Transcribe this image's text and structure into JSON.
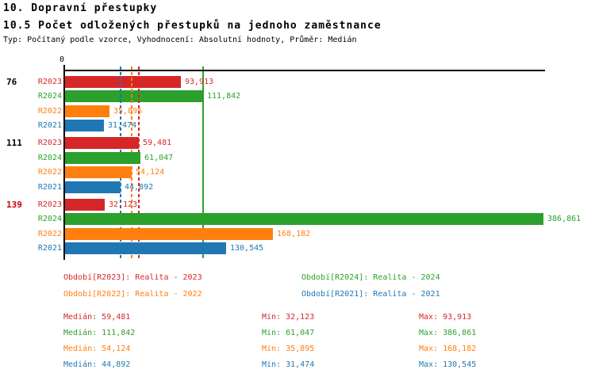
{
  "header": {
    "title": "10. Dopravní přestupky",
    "subtitle": "10.5 Počet odložených přestupků na jednoho zaměstnance",
    "meta": "Typ: Počítaný podle vzorce, Vyhodnocení: Absolutní hodnoty, Průměr: Medián"
  },
  "axis": {
    "zero_label": "0"
  },
  "chart_data": {
    "type": "bar",
    "orientation": "horizontal",
    "xlim": [
      0,
      386861
    ],
    "grid": false,
    "legend_position": "bottom",
    "series": [
      {
        "id": "R2023",
        "label": "R2023",
        "color": "#d62728",
        "legend": "Období[R2023]: Realita - 2023",
        "median": 59481,
        "min": 32123,
        "max": 93913,
        "median_line_style": "dashed"
      },
      {
        "id": "R2024",
        "label": "R2024",
        "color": "#2ca02c",
        "legend": "Období[R2024]: Realita - 2024",
        "median": 111842,
        "min": 61047,
        "max": 386861,
        "median_line_style": "solid"
      },
      {
        "id": "R2022",
        "label": "R2022",
        "color": "#ff7f0e",
        "legend": "Období[R2022]: Realita - 2022",
        "median": 54124,
        "min": 35895,
        "max": 168182,
        "median_line_style": "dashed"
      },
      {
        "id": "R2021",
        "label": "R2021",
        "color": "#1f77b4",
        "legend": "Období[R2021]: Realita - 2021",
        "median": 44892,
        "min": 31474,
        "max": 130545,
        "median_line_style": "dashed"
      }
    ],
    "groups": [
      {
        "label": "76",
        "label_color": "#000000",
        "bars": [
          {
            "series": "R2023",
            "value": 93913,
            "value_text": "93,913"
          },
          {
            "series": "R2024",
            "value": 111842,
            "value_text": "111,842"
          },
          {
            "series": "R2022",
            "value": 35895,
            "value_text": "35,895"
          },
          {
            "series": "R2021",
            "value": 31474,
            "value_text": "31,474"
          }
        ]
      },
      {
        "label": "111",
        "label_color": "#000000",
        "bars": [
          {
            "series": "R2023",
            "value": 59481,
            "value_text": "59,481"
          },
          {
            "series": "R2024",
            "value": 61047,
            "value_text": "61,047"
          },
          {
            "series": "R2022",
            "value": 54124,
            "value_text": "54,124"
          },
          {
            "series": "R2021",
            "value": 44892,
            "value_text": "44,892"
          }
        ]
      },
      {
        "label": "139",
        "label_color": "#cc0000",
        "bars": [
          {
            "series": "R2023",
            "value": 32123,
            "value_text": "32,123"
          },
          {
            "series": "R2024",
            "value": 386861,
            "value_text": "386,861"
          },
          {
            "series": "R2022",
            "value": 168182,
            "value_text": "168,182"
          },
          {
            "series": "R2021",
            "value": 130545,
            "value_text": "130,545"
          }
        ]
      }
    ],
    "legend_rows": [
      [
        "R2023",
        "R2024"
      ],
      [
        "R2022",
        "R2021"
      ]
    ],
    "stats": {
      "order": [
        "R2023",
        "R2024",
        "R2022",
        "R2021"
      ],
      "labels": {
        "median": "Medián:",
        "min": "Min:",
        "max": "Max:"
      },
      "rows": [
        {
          "series": "R2023",
          "median_text": "59,481",
          "min_text": "32,123",
          "max_text": "93,913"
        },
        {
          "series": "R2024",
          "median_text": "111,842",
          "min_text": "61,047",
          "max_text": "386,861"
        },
        {
          "series": "R2022",
          "median_text": "54,124",
          "min_text": "35,895",
          "max_text": "168,182"
        },
        {
          "series": "R2021",
          "median_text": "44,892",
          "min_text": "31,474",
          "max_text": "130,545"
        }
      ]
    }
  }
}
